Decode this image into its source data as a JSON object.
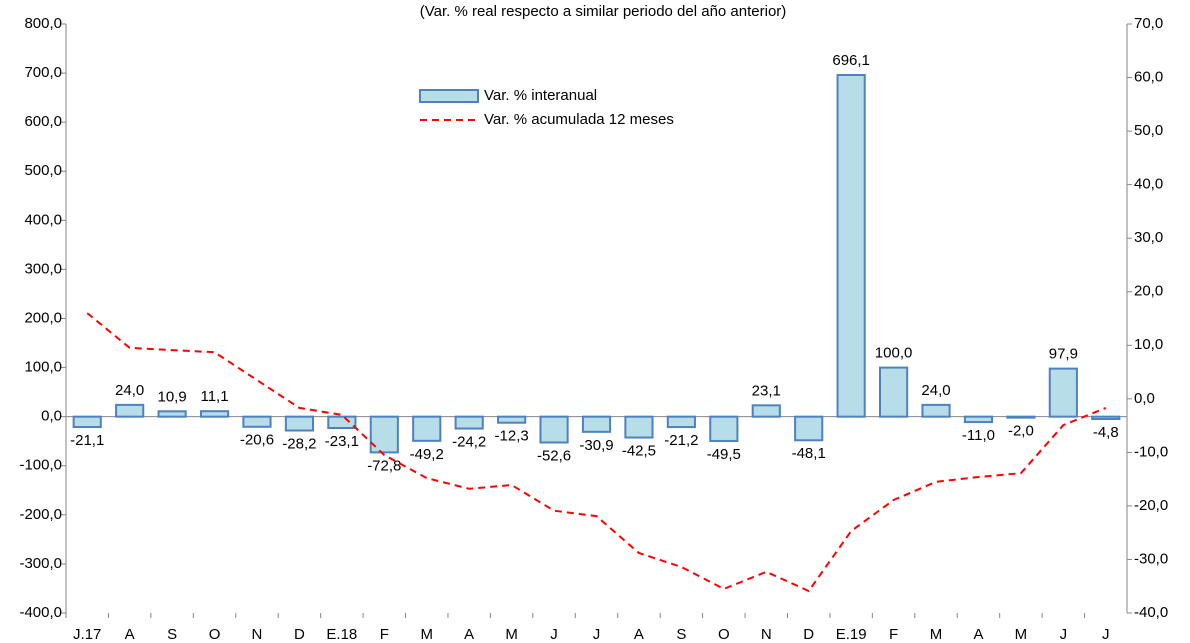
{
  "chart_data": {
    "type": "bar-line",
    "title": "(Var. % real respecto a similar periodo del año anterior)",
    "categories": [
      "J.17",
      "A",
      "S",
      "O",
      "N",
      "D",
      "E.18",
      "F",
      "M",
      "A",
      "M",
      "J",
      "J",
      "A",
      "S",
      "O",
      "N",
      "D",
      "E.19",
      "F",
      "M",
      "A",
      "M",
      "J",
      "J"
    ],
    "series": [
      {
        "name": "Var. % interanual",
        "type": "bar",
        "color": "#b7dde8",
        "stroke": "#4f81bd",
        "values": [
          -21.1,
          24.0,
          10.9,
          11.1,
          -20.6,
          -28.2,
          -23.1,
          -72.8,
          -49.2,
          -24.2,
          -12.3,
          -52.6,
          -30.9,
          -42.5,
          -21.2,
          -49.5,
          23.1,
          -48.1,
          696.1,
          100.0,
          24.0,
          -11.0,
          -2.0,
          97.9,
          -4.8
        ],
        "value_labels": [
          "-21,1",
          "24,0",
          "10,9",
          "11,1",
          "-20,6",
          "-28,2",
          "-23,1",
          "-72,8",
          "-49,2",
          "-24,2",
          "-12,3",
          "-52,6",
          "-30,9",
          "-42,5",
          "-21,2",
          "-49,5",
          "23,1",
          "-48,1",
          "696,1",
          "100,0",
          "24,0",
          "-11,0",
          "-2,0",
          "97,9",
          "-4,8"
        ]
      },
      {
        "name": "Var. % acumulada 12 meses",
        "type": "line",
        "axis": "y2",
        "color": "#ff0000",
        "values": [
          16.0,
          9.5,
          9.1,
          8.7,
          3.5,
          -1.7,
          -3.0,
          -10.5,
          -14.8,
          -16.8,
          -16.1,
          -20.9,
          -21.9,
          -28.8,
          -31.4,
          -35.5,
          -32.3,
          -35.9,
          -24.7,
          -18.9,
          -15.5,
          -14.6,
          -13.9,
          -4.9,
          -1.7
        ]
      }
    ],
    "ylim": [
      -400,
      800
    ],
    "yticks": [
      {
        "value": -400,
        "label": "-400,0"
      },
      {
        "value": -300,
        "label": "-300,0"
      },
      {
        "value": -200,
        "label": "-200,0"
      },
      {
        "value": -100,
        "label": "-100,0"
      },
      {
        "value": 0,
        "label": "0,0"
      },
      {
        "value": 100,
        "label": "100,0"
      },
      {
        "value": 200,
        "label": "200,0"
      },
      {
        "value": 300,
        "label": "300,0"
      },
      {
        "value": 400,
        "label": "400,0"
      },
      {
        "value": 500,
        "label": "500,0"
      },
      {
        "value": 600,
        "label": "600,0"
      },
      {
        "value": 700,
        "label": "700,0"
      },
      {
        "value": 800,
        "label": "800,0"
      }
    ],
    "y2lim": [
      -40,
      70
    ],
    "y2ticks": [
      {
        "value": -40,
        "label": "-40,0"
      },
      {
        "value": -30,
        "label": "-30,0"
      },
      {
        "value": -20,
        "label": "-20,0"
      },
      {
        "value": -10,
        "label": "-10,0"
      },
      {
        "value": 0,
        "label": "0,0"
      },
      {
        "value": 10,
        "label": "10,0"
      },
      {
        "value": 20,
        "label": "20,0"
      },
      {
        "value": 30,
        "label": "30,0"
      },
      {
        "value": 40,
        "label": "40,0"
      },
      {
        "value": 50,
        "label": "50,0"
      },
      {
        "value": 60,
        "label": "60,0"
      },
      {
        "value": 70,
        "label": "70,0"
      }
    ]
  }
}
